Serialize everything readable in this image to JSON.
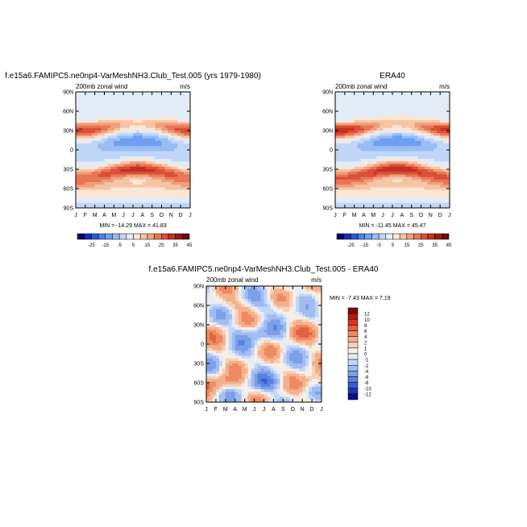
{
  "chart_data": [
    {
      "type": "heatmap",
      "title": "f.e15a6.FAMIPC5.ne0np4-VarMeshNH3.Club_Test.005 (yrs 1979-1980)",
      "left_label": "200mb zonal wind",
      "right_label": "m/s",
      "stats": "MIN = -14.29 MAX =  41.83",
      "x_ticks": [
        "J",
        "F",
        "M",
        "A",
        "M",
        "J",
        "J",
        "A",
        "S",
        "O",
        "N",
        "D",
        "J"
      ],
      "y_ticks": [
        "90N",
        "60N",
        "30N",
        "0",
        "30S",
        "60S",
        "90S"
      ],
      "y_values": [
        90,
        60,
        30,
        0,
        -30,
        -60,
        -90
      ],
      "colorbar": {
        "levels": [
          -30,
          -25,
          -20,
          -15,
          -10,
          -5,
          0,
          5,
          10,
          15,
          20,
          25,
          30,
          35,
          40,
          45
        ],
        "labels": [
          "-25",
          "-15",
          "-5",
          "5",
          "15",
          "25",
          "35",
          "45"
        ],
        "colors": [
          "#09046c",
          "#1a2db8",
          "#2d58d6",
          "#4a7eea",
          "#6f9ef2",
          "#98bcf6",
          "#c0d6f7",
          "#e2ecf7",
          "#fbe6d6",
          "#f6c4a4",
          "#f09f7a",
          "#e87757",
          "#dc4f35",
          "#c6301f",
          "#a11813",
          "#6f0a08"
        ]
      },
      "grid": false
    },
    {
      "type": "heatmap",
      "title": "ERA40",
      "left_label": "200mb zonal wind",
      "right_label": "m/s",
      "stats": "MIN = -11.45 MAX =  45.47",
      "x_ticks": [
        "J",
        "F",
        "M",
        "A",
        "M",
        "J",
        "J",
        "A",
        "S",
        "O",
        "N",
        "D",
        "J"
      ],
      "y_ticks": [
        "90N",
        "60N",
        "30N",
        "0",
        "30S",
        "60S",
        "90S"
      ],
      "y_values": [
        90,
        60,
        30,
        0,
        -30,
        -60,
        -90
      ],
      "colorbar": {
        "levels": [
          -30,
          -25,
          -20,
          -15,
          -10,
          -5,
          0,
          5,
          10,
          15,
          20,
          25,
          30,
          35,
          40,
          45
        ],
        "labels": [
          "-25",
          "-15",
          "-5",
          "5",
          "15",
          "25",
          "35",
          "45"
        ],
        "colors": [
          "#09046c",
          "#1a2db8",
          "#2d58d6",
          "#4a7eea",
          "#6f9ef2",
          "#98bcf6",
          "#c0d6f7",
          "#e2ecf7",
          "#fbe6d6",
          "#f6c4a4",
          "#f09f7a",
          "#e87757",
          "#dc4f35",
          "#c6301f",
          "#a11813",
          "#6f0a08"
        ]
      },
      "grid": false
    },
    {
      "type": "heatmap",
      "title": "f.e15a6.FAMIPC5.ne0np4-VarMeshNH3.Club_Test.005 - ERA40",
      "left_label": "200mb zonal wind",
      "right_label": "m/s",
      "stats": "MIN =  -7.43 MAX =   7.19",
      "x_ticks": [
        "J",
        "F",
        "M",
        "A",
        "M",
        "J",
        "J",
        "A",
        "S",
        "O",
        "N",
        "D",
        "J"
      ],
      "y_ticks": [
        "90N",
        "60N",
        "30N",
        "0",
        "30S",
        "60S",
        "90S"
      ],
      "y_values": [
        90,
        60,
        30,
        0,
        -30,
        -60,
        -90
      ],
      "colorbar": {
        "levels": [
          12,
          10,
          8,
          6,
          4,
          2,
          1,
          0,
          -1,
          -2,
          -4,
          -6,
          -8,
          -10,
          -12
        ],
        "labels": [
          "12",
          "10",
          "8",
          "6",
          "4",
          "2",
          "1",
          "0",
          "-1",
          "-2",
          "-4",
          "-6",
          "-8",
          "-10",
          "-12"
        ],
        "colors": [
          "#7f0c07",
          "#b01c12",
          "#d0391f",
          "#e3613e",
          "#ee8a62",
          "#f4b08c",
          "#f8d0b6",
          "#fbeee3",
          "#e4ecf8",
          "#c3d6f5",
          "#a0bcf1",
          "#7c9fe9",
          "#5a80df",
          "#3a5cd0",
          "#1c32b0",
          "#0b0f86"
        ]
      },
      "grid": false
    }
  ]
}
